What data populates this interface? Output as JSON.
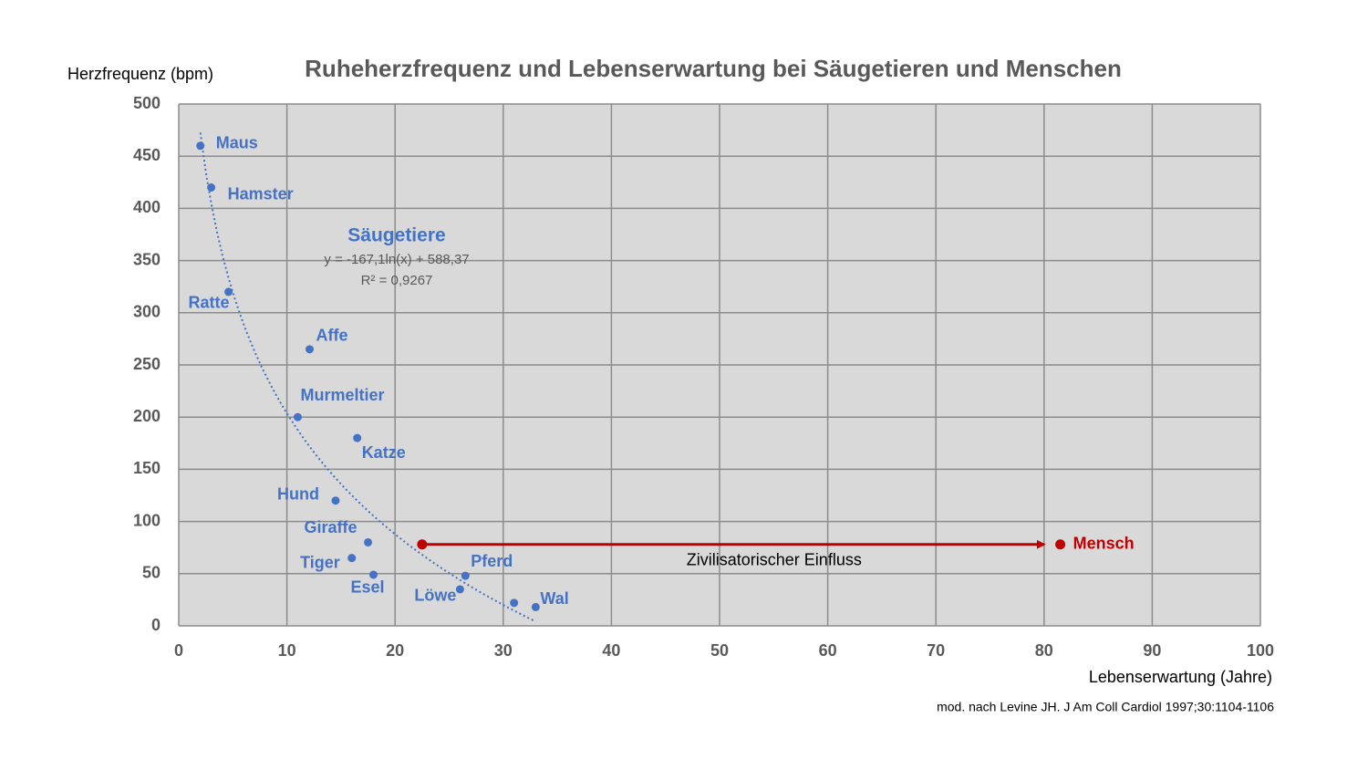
{
  "chart_data": {
    "type": "scatter",
    "title": "Ruheherzfrequenz und Lebenserwartung bei Säugetieren und Menschen",
    "y_label": "Herzfrequenz (bpm)",
    "x_label": "Lebenserwartung (Jahre)",
    "source": "mod. nach Levine JH. J Am Coll Cardiol 1997;30:1104-1106",
    "xlim": [
      0,
      100
    ],
    "xticks": [
      0,
      10,
      20,
      30,
      40,
      50,
      60,
      70,
      80,
      90,
      100
    ],
    "ylim": [
      0,
      500
    ],
    "yticks": [
      0,
      50,
      100,
      150,
      200,
      250,
      300,
      350,
      400,
      450,
      500
    ],
    "grid": true,
    "series": [
      {
        "name": "Säugetiere",
        "color": "#4472c4",
        "labels": [
          "Maus",
          "Hamster",
          "Ratte",
          "Affe",
          "Murmeltier",
          "Katze",
          "Hund",
          "Giraffe",
          "Tiger",
          "Esel",
          "Pferd",
          "Löwe",
          null,
          "Wal"
        ],
        "x": [
          2,
          3,
          4.6,
          12.1,
          11,
          16.5,
          14.5,
          17.5,
          16,
          18,
          26.5,
          26,
          31,
          33
        ],
        "values": [
          460,
          420,
          320,
          265,
          200,
          180,
          120,
          80,
          65,
          49,
          48,
          35,
          22,
          18
        ],
        "trendline": {
          "equation": "y = -167,1ln(x) + 588,37",
          "r2": "R² = 0,9267",
          "slope": -167.1,
          "intercept": 588.37
        }
      },
      {
        "name": "Mensch",
        "color": "#c00000",
        "x": [
          81.5
        ],
        "values": [
          78
        ]
      }
    ],
    "arrow": {
      "label": "Zivilisatorischer Einfluss",
      "x": [
        22.5,
        80
      ],
      "value": 78
    }
  }
}
